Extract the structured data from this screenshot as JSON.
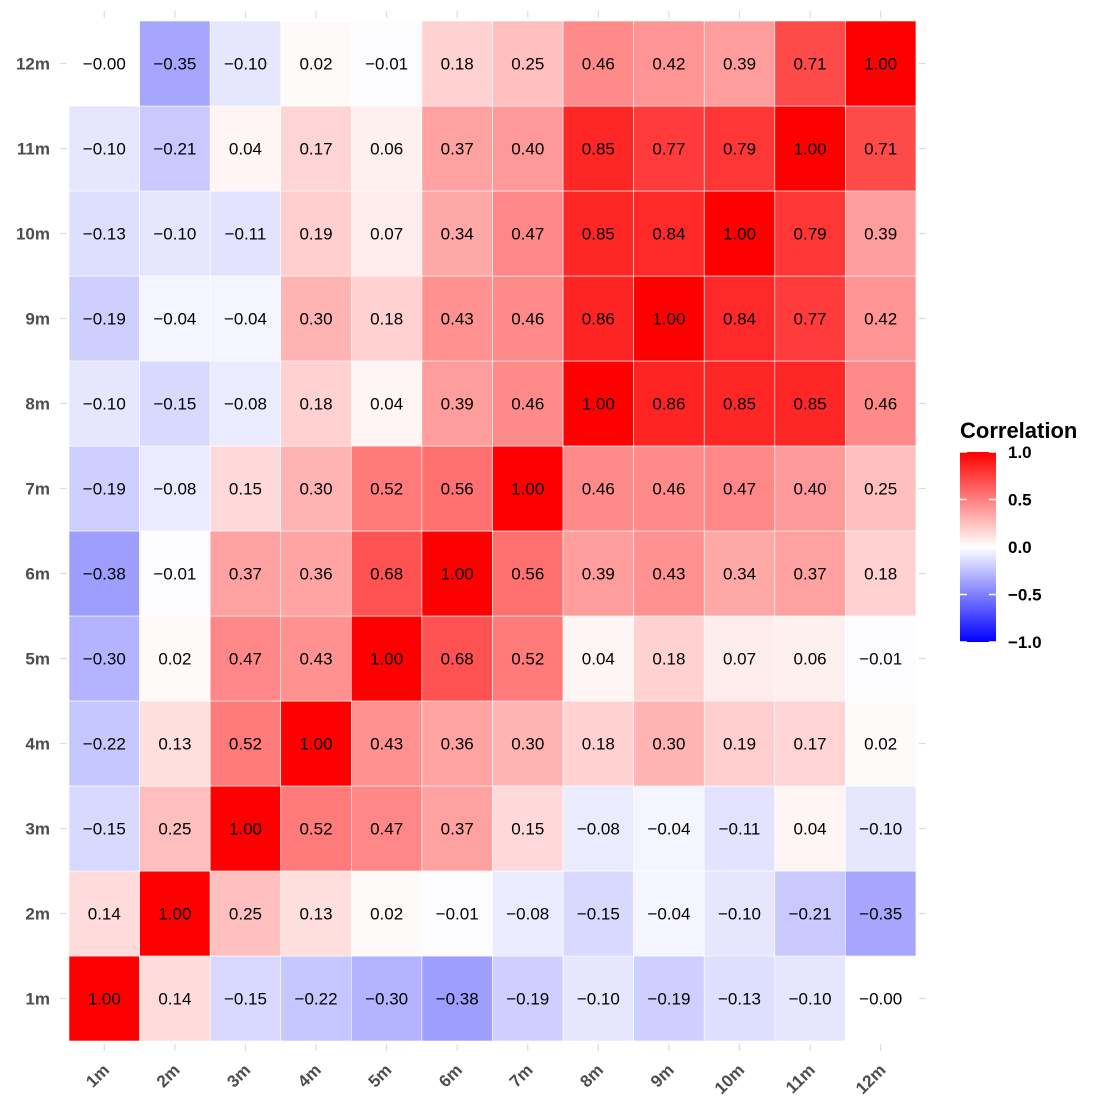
{
  "chart_data": {
    "type": "heatmap",
    "title": "",
    "xlabel": "",
    "ylabel": "",
    "x_categories": [
      "1m",
      "2m",
      "3m",
      "4m",
      "5m",
      "6m",
      "7m",
      "8m",
      "9m",
      "10m",
      "11m",
      "12m"
    ],
    "y_categories": [
      "1m",
      "2m",
      "3m",
      "4m",
      "5m",
      "6m",
      "7m",
      "8m",
      "9m",
      "10m",
      "11m",
      "12m"
    ],
    "values": [
      [
        "1.00",
        "0.14",
        "−0.15",
        "−0.22",
        "−0.30",
        "−0.38",
        "−0.19",
        "−0.10",
        "−0.19",
        "−0.13",
        "−0.10",
        "−0.00"
      ],
      [
        "0.14",
        "1.00",
        "0.25",
        "0.13",
        "0.02",
        "−0.01",
        "−0.08",
        "−0.15",
        "−0.04",
        "−0.10",
        "−0.21",
        "−0.35"
      ],
      [
        "−0.15",
        "0.25",
        "1.00",
        "0.52",
        "0.47",
        "0.37",
        "0.15",
        "−0.08",
        "−0.04",
        "−0.11",
        "0.04",
        "−0.10"
      ],
      [
        "−0.22",
        "0.13",
        "0.52",
        "1.00",
        "0.43",
        "0.36",
        "0.30",
        "0.18",
        "0.30",
        "0.19",
        "0.17",
        "0.02"
      ],
      [
        "−0.30",
        "0.02",
        "0.47",
        "0.43",
        "1.00",
        "0.68",
        "0.52",
        "0.04",
        "0.18",
        "0.07",
        "0.06",
        "−0.01"
      ],
      [
        "−0.38",
        "−0.01",
        "0.37",
        "0.36",
        "0.68",
        "1.00",
        "0.56",
        "0.39",
        "0.43",
        "0.34",
        "0.37",
        "0.18"
      ],
      [
        "−0.19",
        "−0.08",
        "0.15",
        "0.30",
        "0.52",
        "0.56",
        "1.00",
        "0.46",
        "0.46",
        "0.47",
        "0.40",
        "0.25"
      ],
      [
        "−0.10",
        "−0.15",
        "−0.08",
        "0.18",
        "0.04",
        "0.39",
        "0.46",
        "1.00",
        "0.86",
        "0.85",
        "0.85",
        "0.46"
      ],
      [
        "−0.19",
        "−0.04",
        "−0.04",
        "0.30",
        "0.18",
        "0.43",
        "0.46",
        "0.86",
        "1.00",
        "0.84",
        "0.77",
        "0.42"
      ],
      [
        "−0.13",
        "−0.10",
        "−0.11",
        "0.19",
        "0.07",
        "0.34",
        "0.47",
        "0.85",
        "0.84",
        "1.00",
        "0.79",
        "0.39"
      ],
      [
        "−0.10",
        "−0.21",
        "0.04",
        "0.17",
        "0.06",
        "0.37",
        "0.40",
        "0.85",
        "0.77",
        "0.79",
        "1.00",
        "0.71"
      ],
      [
        "−0.00",
        "−0.35",
        "−0.10",
        "0.02",
        "−0.01",
        "0.18",
        "0.25",
        "0.46",
        "0.42",
        "0.39",
        "0.71",
        "1.00"
      ]
    ],
    "color_scale": {
      "low": "#0000ff",
      "mid": "#ffffff",
      "high": "#ff0000",
      "limits": [
        -1,
        1
      ]
    },
    "legend": {
      "title": "Correlation",
      "position": "right",
      "ticks": [
        "1.0",
        "0.5",
        "0.0",
        "−0.5",
        "−1.0"
      ],
      "tick_values": [
        1.0,
        0.5,
        0.0,
        -0.5,
        -1.0
      ]
    },
    "grid": false
  }
}
